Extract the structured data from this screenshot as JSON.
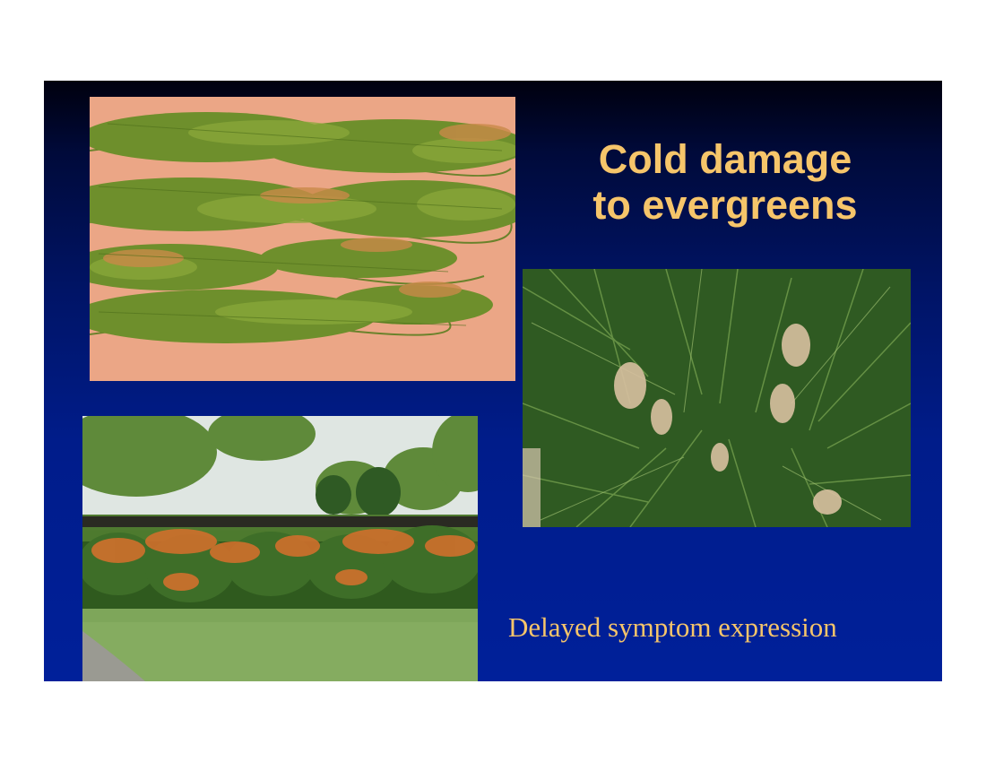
{
  "slide": {
    "title_line1": "Cold damage",
    "title_line2": "to evergreens",
    "caption": "Delayed symptom expression"
  },
  "photos": [
    {
      "name": "pine-branches-on-cloth-photo"
    },
    {
      "name": "pine-needles-closeup-photo"
    },
    {
      "name": "shrub-hedge-photo"
    }
  ],
  "colors": {
    "title": "#f6c56a",
    "caption": "#f6c56a",
    "slide_bg_top": "#00000e",
    "slide_bg_bottom": "#00209a"
  }
}
